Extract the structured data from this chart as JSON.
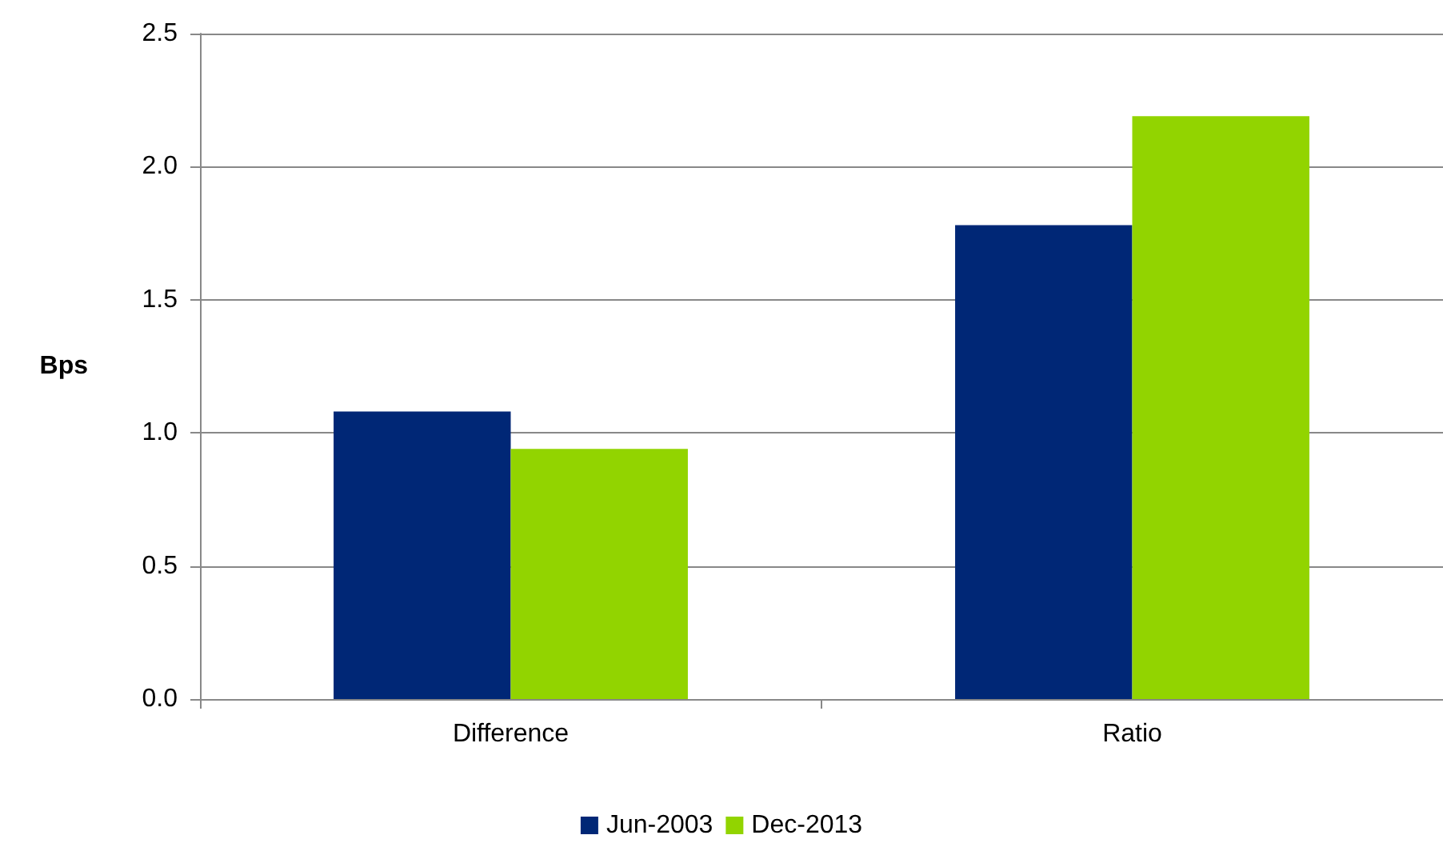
{
  "chart_data": {
    "type": "bar",
    "ylabel": "Bps",
    "categories": [
      "Difference",
      "Ratio"
    ],
    "series": [
      {
        "name": "Jun-2003",
        "color": "#002776",
        "values": [
          1.08,
          1.78
        ]
      },
      {
        "name": "Dec-2013",
        "color": "#92d400",
        "values": [
          0.94,
          2.19
        ]
      }
    ],
    "ylim": [
      0,
      2.5
    ],
    "yticks": [
      {
        "value": 0,
        "label": "0.0"
      },
      0.5,
      {
        "value": 1,
        "label": "1.0"
      },
      1.5,
      {
        "value": 2,
        "label": "2.0"
      },
      2.5
    ],
    "grid": "y",
    "legend": "bottom"
  }
}
